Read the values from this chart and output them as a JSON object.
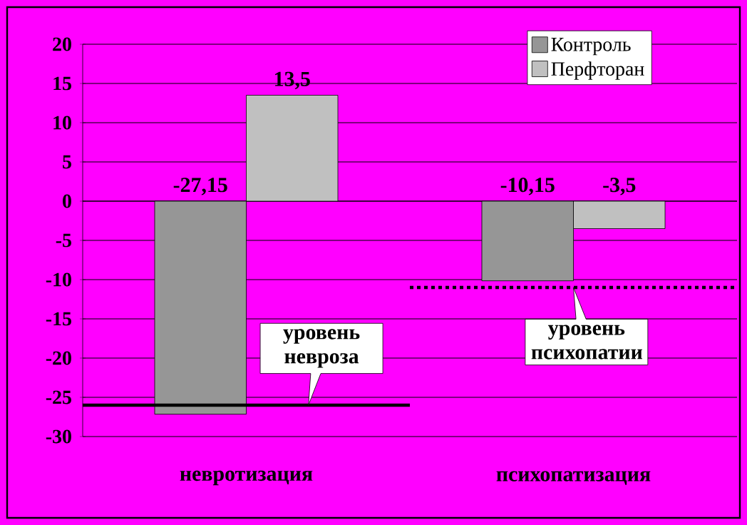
{
  "chart_data": {
    "type": "bar",
    "categories": [
      "невротизация",
      "психопатизация"
    ],
    "series": [
      {
        "name": "Контроль",
        "color": "#969696",
        "values": [
          -27.15,
          -10.15
        ],
        "value_labels": [
          "-27,15",
          "-10,15"
        ]
      },
      {
        "name": "Перфторан",
        "color": "#c0c0c0",
        "values": [
          13.5,
          -3.5
        ],
        "value_labels": [
          "13,5",
          "-3,5"
        ]
      }
    ],
    "ylim": [
      -30,
      20
    ],
    "yticks": [
      -30,
      -25,
      -20,
      -15,
      -10,
      -5,
      0,
      5,
      10,
      15,
      20
    ],
    "grid": "y",
    "legend": "top right",
    "ref_lines": [
      {
        "axis": "y",
        "value": -26,
        "label": "уровень невроза",
        "color": "#000000",
        "line_style": "solid"
      },
      {
        "axis": "y",
        "value": -11,
        "label": "уровень психопатии",
        "color": "#000000",
        "line_style": "dotted"
      }
    ]
  }
}
